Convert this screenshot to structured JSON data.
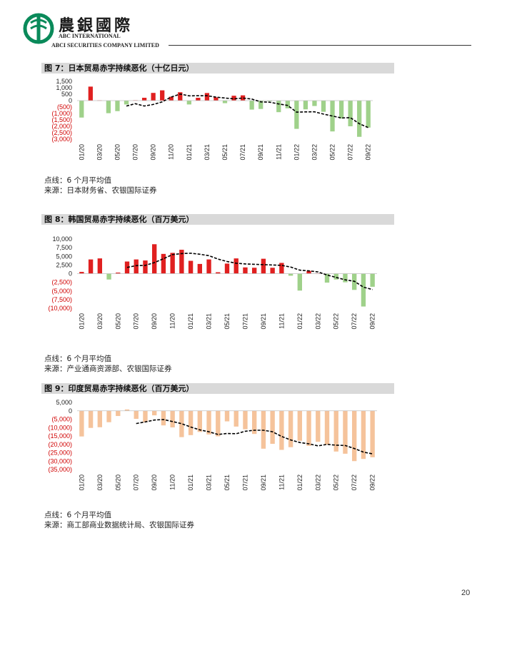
{
  "header": {
    "brand_cn": "農銀國際",
    "brand_en_line1": "ABC INTERNATIONAL",
    "brand_en_line2": "ABCI SECURITIES COMPANY LIMITED",
    "logo_icon": "abc-bank-logo-icon",
    "logo_color": "#0a8a5a"
  },
  "colors": {
    "deficit_positive": "#e02020",
    "deficit_negative": "#9fd18a",
    "india_bar": "#f5c39b",
    "moving_average": "#000000",
    "negative_tick_text": "#d00000",
    "title_band": "#d9d9d9"
  },
  "charts": [
    {
      "title": "图 7：日本贸易赤字持续恶化（十亿日元）",
      "dotted_label": "点线：6 个月平均值",
      "source": "来源：日本财务省、农银国际证券"
    },
    {
      "title": "图 8：韩国贸易赤字持续恶化（百万美元）",
      "dotted_label": "点线：6 个月平均值",
      "source": "来源：产业通商资源部、农银国际证券"
    },
    {
      "title": "图 9：印度贸易赤字持续恶化（百万美元）",
      "dotted_label": "点线：6 个月平均值",
      "source": "来源：商工部商业数据统计局、农银国际证券"
    }
  ],
  "chart_data": [
    {
      "type": "bar",
      "title": "图 7：日本贸易赤字持续恶化（十亿日元）",
      "categories": [
        "01/20",
        "02/20",
        "03/20",
        "04/20",
        "05/20",
        "06/20",
        "07/20",
        "08/20",
        "09/20",
        "10/20",
        "11/20",
        "12/20",
        "01/21",
        "02/21",
        "03/21",
        "04/21",
        "05/21",
        "06/21",
        "07/21",
        "08/21",
        "09/21",
        "10/21",
        "11/21",
        "12/21",
        "01/22",
        "02/22",
        "03/22",
        "04/22",
        "05/22",
        "06/22",
        "07/22",
        "08/22",
        "09/22"
      ],
      "x_tick_labels": [
        "01/20",
        "03/20",
        "05/20",
        "07/20",
        "09/20",
        "11/20",
        "01/21",
        "03/21",
        "05/21",
        "07/21",
        "09/21",
        "11/21",
        "01/22",
        "03/22",
        "05/22",
        "07/22",
        "09/22"
      ],
      "ylim": [
        -3000,
        1500
      ],
      "y_ticks": [
        1500,
        1000,
        500,
        0,
        -500,
        -1000,
        -1500,
        -2000,
        -2500,
        -3000
      ],
      "y_tick_labels": [
        "1,500",
        "1,000",
        "500",
        "0",
        "(500)",
        "(1,000)",
        "(1,500)",
        "(2,000)",
        "(2,500)",
        "(3,000)"
      ],
      "series": [
        {
          "values": [
            -1320,
            1090,
            20,
            -980,
            -820,
            -300,
            30,
            220,
            600,
            800,
            300,
            650,
            -300,
            220,
            590,
            250,
            -200,
            380,
            410,
            -700,
            -650,
            -50,
            -900,
            -600,
            -2200,
            -680,
            -420,
            -870,
            -2400,
            -1400,
            -2000,
            -2820,
            -2100
          ]
        },
        {
          "values": [
            null,
            null,
            null,
            null,
            null,
            -420,
            -240,
            -420,
            -300,
            -100,
            280,
            510,
            370,
            380,
            380,
            270,
            200,
            140,
            200,
            120,
            -100,
            -120,
            -260,
            -370,
            -900,
            -880,
            -870,
            -1050,
            -1200,
            -1350,
            -1330,
            -1800,
            -2100
          ]
        }
      ]
    },
    {
      "type": "bar",
      "title": "图 8：韩国贸易赤字持续恶化（百万美元）",
      "categories": [
        "01/20",
        "02/20",
        "03/20",
        "04/20",
        "05/20",
        "06/20",
        "07/20",
        "08/20",
        "09/20",
        "10/20",
        "11/20",
        "12/20",
        "01/21",
        "02/21",
        "03/21",
        "04/21",
        "05/21",
        "06/21",
        "07/21",
        "08/21",
        "09/21",
        "10/21",
        "11/21",
        "12/21",
        "01/22",
        "02/22",
        "03/22",
        "04/22",
        "05/22",
        "06/22",
        "07/22",
        "08/22",
        "09/22"
      ],
      "x_tick_labels": [
        "01/20",
        "03/20",
        "05/20",
        "07/20",
        "09/20",
        "11/20",
        "01/21",
        "03/21",
        "05/21",
        "07/21",
        "09/21",
        "11/21",
        "01/22",
        "03/22",
        "05/22",
        "07/22",
        "09/22"
      ],
      "ylim": [
        -10000,
        10000
      ],
      "y_ticks": [
        10000,
        7500,
        5000,
        2500,
        0,
        -2500,
        -5000,
        -7500,
        -10000
      ],
      "y_tick_labels": [
        "10,000",
        "7,500",
        "5,000",
        "2,500",
        "0",
        "(2,500)",
        "(5,000)",
        "(7,500)",
        "(10,000)"
      ],
      "series": [
        {
          "values": [
            500,
            4100,
            4400,
            -1700,
            300,
            3500,
            4100,
            3800,
            8500,
            5700,
            6000,
            6900,
            3700,
            2800,
            4100,
            400,
            2900,
            4400,
            1800,
            1700,
            4300,
            1700,
            3100,
            -600,
            -4900,
            800,
            100,
            -2600,
            -1700,
            -2500,
            -4700,
            -9500,
            -3800
          ]
        },
        {
          "values": [
            null,
            null,
            null,
            null,
            null,
            1800,
            2300,
            2400,
            3200,
            4300,
            5500,
            5800,
            5900,
            5600,
            5200,
            4200,
            3500,
            3000,
            2800,
            2700,
            2600,
            2500,
            2400,
            1900,
            1000,
            800,
            500,
            -400,
            -1100,
            -1800,
            -2200,
            -3900,
            -4600
          ]
        }
      ]
    },
    {
      "type": "bar",
      "title": "图 9：印度贸易赤字持续恶化（百万美元）",
      "categories": [
        "01/20",
        "02/20",
        "03/20",
        "04/20",
        "05/20",
        "06/20",
        "07/20",
        "08/20",
        "09/20",
        "10/20",
        "11/20",
        "12/20",
        "01/21",
        "02/21",
        "03/21",
        "04/21",
        "05/21",
        "06/21",
        "07/21",
        "08/21",
        "09/21",
        "10/21",
        "11/21",
        "12/21",
        "01/22",
        "02/22",
        "03/22",
        "04/22",
        "05/22",
        "06/22",
        "07/22",
        "08/22",
        "09/22"
      ],
      "x_tick_labels": [
        "01/20",
        "03/20",
        "05/20",
        "07/20",
        "09/20",
        "11/20",
        "01/21",
        "03/21",
        "05/21",
        "07/21",
        "09/21",
        "11/21",
        "01/22",
        "03/22",
        "05/22",
        "07/22",
        "09/22"
      ],
      "ylim": [
        -35000,
        5000
      ],
      "y_ticks": [
        5000,
        0,
        -5000,
        -10000,
        -15000,
        -20000,
        -25000,
        -30000,
        -35000
      ],
      "y_tick_labels": [
        "5,000",
        "0",
        "(5,000)",
        "(10,000)",
        "(15,000)",
        "(20,000)",
        "(25,000)",
        "(30,000)",
        "(35,000)"
      ],
      "series": [
        {
          "values": [
            -15300,
            -10200,
            -9800,
            -6800,
            -3100,
            800,
            -4800,
            -6800,
            -2700,
            -8700,
            -9900,
            -15700,
            -14500,
            -12600,
            -14100,
            -15200,
            -6300,
            -9400,
            -11000,
            -13800,
            -22600,
            -19700,
            -23300,
            -21700,
            -17900,
            -20900,
            -18500,
            -20100,
            -24300,
            -25600,
            -30000,
            -28700,
            -27700
          ]
        },
        {
          "values": [
            null,
            null,
            null,
            null,
            null,
            null,
            -7600,
            -6600,
            -5500,
            -5200,
            -6400,
            -7700,
            -9700,
            -11400,
            -12500,
            -14100,
            -13500,
            -13700,
            -12200,
            -11600,
            -11600,
            -12500,
            -15300,
            -17400,
            -18900,
            -19700,
            -20900,
            -20000,
            -20500,
            -20700,
            -22500,
            -24600,
            -25700
          ]
        }
      ]
    }
  ],
  "page_number": "20"
}
